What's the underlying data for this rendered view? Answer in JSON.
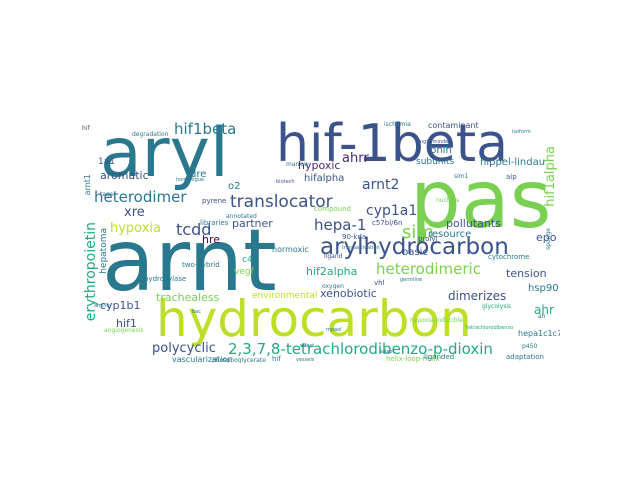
{
  "colors": {
    "navy": "#3b528b",
    "teal": "#2a788e",
    "green": "#22a884",
    "lime": "#7ad151",
    "yellow": "#bddf26",
    "purple": "#482878",
    "dark": "#440154"
  },
  "words": [
    {
      "text": "arnt",
      "color": "teal"
    },
    {
      "text": "aryl",
      "color": "teal"
    },
    {
      "text": "hif-1beta",
      "color": "navy"
    },
    {
      "text": "pas",
      "color": "lime"
    },
    {
      "text": "hydrocarbon",
      "color": "yellow"
    },
    {
      "text": "arylhydrocarbon",
      "color": "navy"
    },
    {
      "text": "2,3,7,8-tetrachlorodibenzo-p-dioxin",
      "color": "green"
    },
    {
      "text": "translocator",
      "color": "navy"
    },
    {
      "text": "heterodimer",
      "color": "teal"
    },
    {
      "text": "hif1beta",
      "color": "teal"
    },
    {
      "text": "erythropoietin",
      "color": "green"
    },
    {
      "text": "hypoxia",
      "color": "yellow"
    },
    {
      "text": "tcdd",
      "color": "navy"
    },
    {
      "text": "hepa-1",
      "color": "navy"
    },
    {
      "text": "cyp1a1",
      "color": "navy"
    },
    {
      "text": "sim",
      "color": "lime"
    },
    {
      "text": "heterodimeric",
      "color": "lime"
    },
    {
      "text": "arnt2",
      "color": "navy"
    },
    {
      "text": "ahrr",
      "color": "purple"
    },
    {
      "text": "hypoxic",
      "color": "purple"
    },
    {
      "text": "aromatic",
      "color": "navy"
    },
    {
      "text": "xre",
      "color": "navy"
    },
    {
      "text": "polycyclic",
      "color": "navy"
    },
    {
      "text": "xenobiotic",
      "color": "navy"
    },
    {
      "text": "dimerizes",
      "color": "navy"
    },
    {
      "text": "tension",
      "color": "navy"
    },
    {
      "text": "resource",
      "color": "teal"
    },
    {
      "text": "pollutants",
      "color": "navy"
    },
    {
      "text": "hif2alpha",
      "color": "green"
    },
    {
      "text": "trachealess",
      "color": "lime"
    },
    {
      "text": "environmental",
      "color": "yellow"
    },
    {
      "text": "hif1",
      "color": "navy"
    },
    {
      "text": "cyp1b1",
      "color": "navy"
    },
    {
      "text": "hsp90",
      "color": "teal"
    },
    {
      "text": "ahr",
      "color": "green"
    },
    {
      "text": "epo",
      "color": "navy"
    },
    {
      "text": "hifalpha",
      "color": "navy"
    },
    {
      "text": "hif1alpha",
      "color": "lime"
    },
    {
      "text": "basic",
      "color": "navy"
    },
    {
      "text": "bhlh",
      "color": "teal"
    },
    {
      "text": "hippel-lindau",
      "color": "teal"
    },
    {
      "text": "subunits",
      "color": "teal"
    },
    {
      "text": "partner",
      "color": "navy"
    },
    {
      "text": "hre",
      "color": "dark"
    },
    {
      "text": "dre",
      "color": "teal"
    },
    {
      "text": "o2",
      "color": "teal"
    },
    {
      "text": "vascularization",
      "color": "teal"
    },
    {
      "text": "hepatoma",
      "color": "teal"
    },
    {
      "text": "contaminant",
      "color": "navy"
    },
    {
      "text": "normoxic",
      "color": "teal"
    },
    {
      "text": "c4",
      "color": "green"
    },
    {
      "text": "hepa1c1c7",
      "color": "teal"
    },
    {
      "text": "adaptation",
      "color": "teal"
    },
    {
      "text": "helix-loop-helix",
      "color": "lime"
    },
    {
      "text": "liganded",
      "color": "teal"
    },
    {
      "text": "hif",
      "color": "teal"
    },
    {
      "text": "phosphoglycerate",
      "color": "teal"
    },
    {
      "text": "vegf",
      "color": "lime"
    },
    {
      "text": "two-hybrid",
      "color": "teal"
    },
    {
      "text": "hydroxylase",
      "color": "teal"
    },
    {
      "text": "libraries",
      "color": "teal"
    },
    {
      "text": "pyrene",
      "color": "navy"
    },
    {
      "text": "c57bl/6n",
      "color": "navy"
    },
    {
      "text": "cytochrome",
      "color": "teal"
    },
    {
      "text": "vhl",
      "color": "navy"
    },
    {
      "text": "1a1",
      "color": "navy"
    },
    {
      "text": "arnt1",
      "color": "teal"
    },
    {
      "text": "compound",
      "color": "lime"
    },
    {
      "text": "marrow",
      "color": "teal"
    },
    {
      "text": "annotated",
      "color": "teal"
    },
    {
      "text": "90-kda",
      "color": "navy"
    },
    {
      "text": "prolyl",
      "color": "navy"
    },
    {
      "text": "angiogenesis",
      "color": "lime"
    },
    {
      "text": "degradation",
      "color": "teal"
    },
    {
      "text": "oxygen",
      "color": "teal"
    },
    {
      "text": "ischemia",
      "color": "teal"
    },
    {
      "text": "sim1",
      "color": "teal"
    },
    {
      "text": "glycolysis",
      "color": "green"
    },
    {
      "text": "hypoxia-inducible",
      "color": "lime"
    },
    {
      "text": "aip",
      "color": "navy"
    },
    {
      "text": "single-minded",
      "color": "navy"
    },
    {
      "text": "nucleus",
      "color": "lime"
    },
    {
      "text": "sponge",
      "color": "teal"
    },
    {
      "text": "ligand",
      "color": "navy"
    },
    {
      "text": "transactivation",
      "color": "teal"
    },
    {
      "text": "ah",
      "color": "teal"
    },
    {
      "text": "tetrachlorodibenzo",
      "color": "green"
    },
    {
      "text": "homologue",
      "color": "teal"
    },
    {
      "text": "germline",
      "color": "teal"
    },
    {
      "text": "tags",
      "color": "navy"
    },
    {
      "text": "p450",
      "color": "teal"
    },
    {
      "text": "amino",
      "color": "teal"
    },
    {
      "text": "isoform",
      "color": "teal"
    },
    {
      "text": "hif",
      "color": "navy"
    },
    {
      "text": "adapt",
      "color": "teal"
    },
    {
      "text": "biotech",
      "color": "navy"
    },
    {
      "text": "vessels",
      "color": "teal"
    },
    {
      "text": "effect",
      "color": "teal"
    },
    {
      "text": "mpaol",
      "color": "teal"
    },
    {
      "text": "bac",
      "color": "teal"
    }
  ]
}
